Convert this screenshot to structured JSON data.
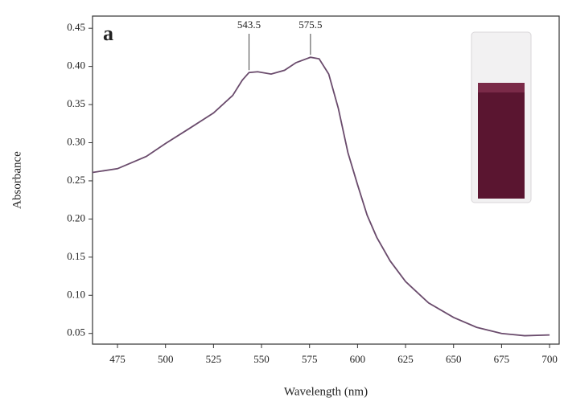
{
  "chart_data": {
    "type": "line",
    "panel_label": "a",
    "x_label": "Wavelength (nm)",
    "y_label": "Absorbance",
    "x": [
      462,
      475,
      490,
      500,
      512,
      525,
      535,
      540,
      543.5,
      548,
      555,
      562,
      568,
      575.5,
      580,
      585,
      590,
      595,
      600,
      605,
      610,
      617,
      625,
      637,
      650,
      662,
      675,
      687,
      700
    ],
    "series": [
      {
        "name": "Absorbance",
        "color": "#6a4b6c",
        "values": [
          0.261,
          0.266,
          0.282,
          0.299,
          0.318,
          0.339,
          0.362,
          0.382,
          0.392,
          0.393,
          0.39,
          0.395,
          0.405,
          0.412,
          0.41,
          0.39,
          0.345,
          0.287,
          0.245,
          0.205,
          0.176,
          0.145,
          0.118,
          0.09,
          0.071,
          0.058,
          0.05,
          0.047,
          0.048
        ]
      }
    ],
    "peak_labels": [
      543.5,
      575.5
    ],
    "xlim": [
      462,
      705
    ],
    "ylim": [
      0.036,
      0.466
    ],
    "xticks": [
      475,
      500,
      525,
      550,
      575,
      600,
      625,
      650,
      675,
      700
    ],
    "yticks": [
      0.05,
      {
        "value": 0.1,
        "label": "0.10"
      },
      0.15,
      {
        "value": 0.2,
        "label": "0.20"
      },
      0.25,
      {
        "value": 0.3,
        "label": "0.30"
      },
      0.35,
      {
        "value": 0.4,
        "label": "0.40"
      },
      0.45
    ]
  }
}
